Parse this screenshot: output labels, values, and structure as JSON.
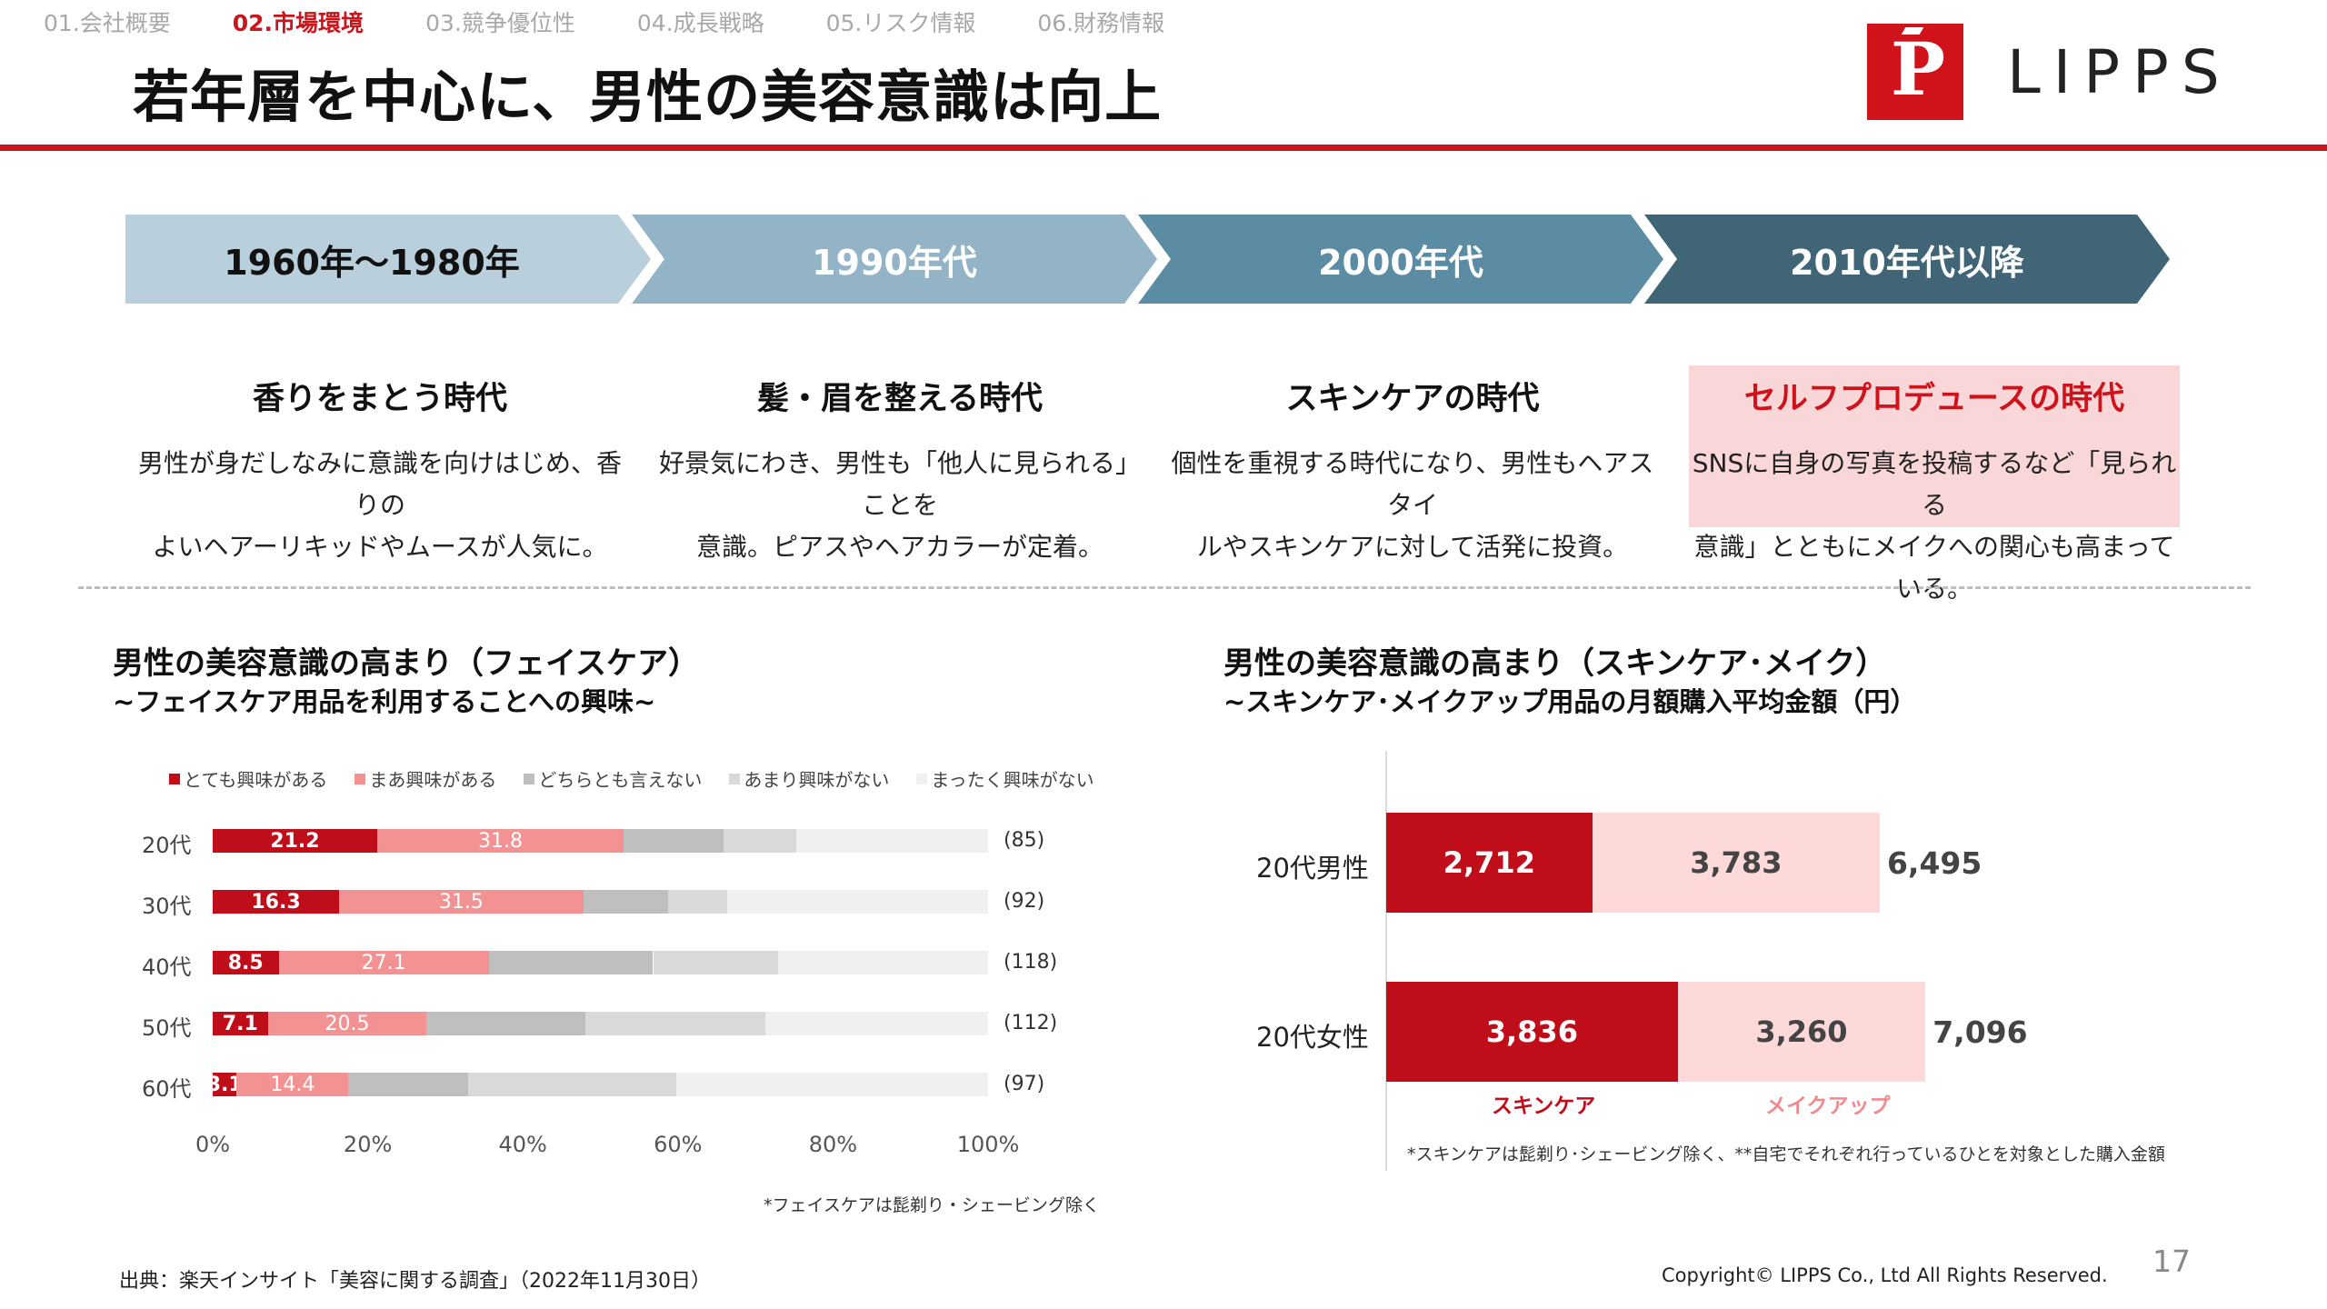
{
  "nav": {
    "items": [
      "01.会社概要",
      "02.市場環境",
      "03.競争優位性",
      "04.成長戦略",
      "05.リスク情報",
      "06.財務情報"
    ],
    "active_index": 1
  },
  "title": "若年層を中心に、男性の美容意識は向上",
  "logo": {
    "mark": "P",
    "text": "LIPPS"
  },
  "timeline": [
    {
      "period": "1960年〜1980年",
      "heading": "香りをまとう時代",
      "body_lines": [
        "男性が身だしなみに意識を向けはじめ、香りの",
        "よいヘアーリキッドやムースが人気に。"
      ],
      "fill": "#b9d0dc",
      "text_color": "#111111"
    },
    {
      "period": "1990年代",
      "heading": "髪・眉を整える時代",
      "body_lines": [
        "好景気にわき、男性も「他人に見られる」ことを",
        "意識。ピアスやヘアカラーが定着。"
      ],
      "fill": "#93b4c6",
      "text_color": "#ffffff"
    },
    {
      "period": "2000年代",
      "heading": "スキンケアの時代",
      "body_lines": [
        "個性を重視する時代になり、男性もヘアスタイ",
        "ルやスキンケアに対して活発に投資。"
      ],
      "fill": "#5b8ca3",
      "text_color": "#ffffff"
    },
    {
      "period": "2010年代以降",
      "heading": "セルフプロデュースの時代",
      "body_lines": [
        "SNSに自身の写真を投稿するなど「見られる",
        "意識」とともにメイクへの関心も高まっている。"
      ],
      "fill": "#3f6577",
      "text_color": "#ffffff",
      "highlight": true
    }
  ],
  "left_section": {
    "title": "男性の美容意識の高まり（フェイスケア）",
    "subtitle": "~フェイスケア用品を利用することへの興味~",
    "note": "*フェイスケアは髭剃り・シェービング除く"
  },
  "right_section": {
    "title": "男性の美容意識の高まり（スキンケア･メイク）",
    "subtitle": "~スキンケア･メイクアップ用品の月額購入平均金額（円）",
    "note": "*スキンケアは髭剃り･シェービング除く、**自宅でそれぞれ行っているひとを対象とした購入金額"
  },
  "chart_data": [
    {
      "type": "bar",
      "orientation": "horizontal",
      "stacked": true,
      "categories": [
        "20代",
        "30代",
        "40代",
        "50代",
        "60代"
      ],
      "sample_sizes": [
        "(85)",
        "(92)",
        "(118)",
        "(112)",
        "(97)"
      ],
      "series": [
        {
          "name": "とても興味がある",
          "color": "#c00d1a",
          "label_color": "#ffffff",
          "values": [
            21.2,
            16.3,
            8.5,
            7.1,
            3.1
          ],
          "show_labels": true
        },
        {
          "name": "まあ興味がある",
          "color": "#f39293",
          "label_color": "#ffffff",
          "values": [
            31.8,
            31.5,
            27.1,
            20.5,
            14.4
          ],
          "show_labels": true
        },
        {
          "name": "どちらとも言えない",
          "color": "#bfbfbf",
          "values": [
            12.9,
            10.9,
            21.2,
            20.5,
            15.5
          ],
          "show_labels": false
        },
        {
          "name": "あまり興味がない",
          "color": "#d9d9d9",
          "values": [
            9.4,
            7.6,
            16.1,
            23.2,
            26.8
          ],
          "show_labels": false
        },
        {
          "name": "まったく興味がない",
          "color": "#f0f0f0",
          "values": [
            24.7,
            33.7,
            27.1,
            28.7,
            40.2
          ],
          "show_labels": false
        }
      ],
      "xlim": [
        0,
        100
      ],
      "xticks": [
        "0%",
        "20%",
        "40%",
        "60%",
        "80%",
        "100%"
      ],
      "legend_position": "top"
    },
    {
      "type": "bar",
      "orientation": "horizontal",
      "stacked": true,
      "categories": [
        "20代男性",
        "20代女性"
      ],
      "series": [
        {
          "name": "スキンケア",
          "color": "#c00d1a",
          "label_color": "#ffffff",
          "values": [
            2712,
            3836
          ],
          "labels": [
            "2,712",
            "3,836"
          ]
        },
        {
          "name": "メイクアップ",
          "color": "#fdd9da",
          "label_color": "#444444",
          "values": [
            3783,
            3260
          ],
          "labels": [
            "3,783",
            "3,260"
          ]
        }
      ],
      "totals": [
        "6,495",
        "7,096"
      ],
      "legend_position": "bottom",
      "legend_colors": [
        "#c00d1a",
        "#f08a8d"
      ]
    }
  ],
  "footer": {
    "source": "出典：楽天インサイト「美容に関する調査」（2022年11月30日）",
    "copyright": "Copyright© LIPPS Co., Ltd All Rights Reserved.",
    "page_number": "17"
  }
}
